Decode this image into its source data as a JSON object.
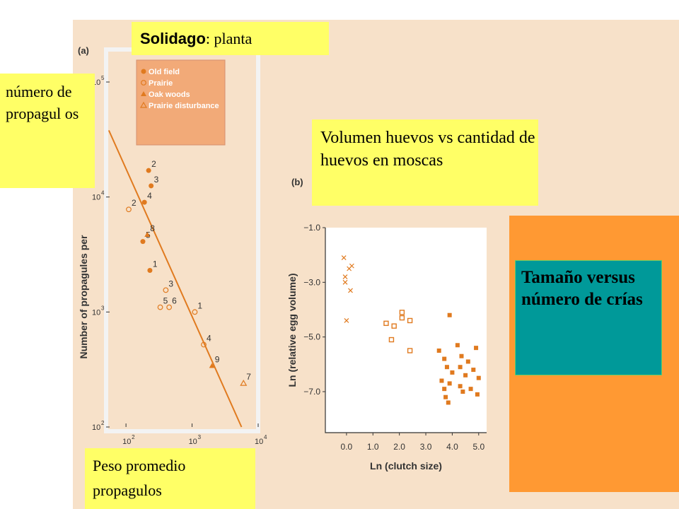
{
  "title_box": {
    "bold": "Solidago",
    "rest": ": planta"
  },
  "ylabel_box": {
    "text": "número de propagul os"
  },
  "xlabel_box": {
    "text": "Peso promedio propagulos"
  },
  "flies_box": {
    "text": "Volumen huevos vs cantidad de huevos en moscas"
  },
  "teal_box": {
    "text": "Tamaño versus número de crías"
  },
  "colors": {
    "background": "#f7e1c9",
    "accent": "#e07a1f",
    "yellow_label": "#ffff66",
    "orange_panel": "#ff9933",
    "teal": "#009999",
    "legend_bg": "#f2aa78"
  },
  "chart_data": [
    {
      "panel_label": "(a)",
      "type": "scatter",
      "ylabel": "Number of propagules per",
      "xlabel": "",
      "x_scale": "log",
      "y_scale": "log",
      "xlim": [
        50,
        10000
      ],
      "ylim": [
        100,
        100000
      ],
      "x_ticks": [
        {
          "v": 100,
          "base": "10",
          "exp": "2"
        },
        {
          "v": 1000,
          "base": "10",
          "exp": "3"
        },
        {
          "v": 10000,
          "base": "10",
          "exp": "4"
        }
      ],
      "y_ticks": [
        {
          "v": 100,
          "base": "10",
          "exp": "2"
        },
        {
          "v": 1000,
          "base": "10",
          "exp": "3"
        },
        {
          "v": 10000,
          "base": "10",
          "exp": "4"
        },
        {
          "v": 100000,
          "base": "10",
          "exp": "5"
        }
      ],
      "legend": [
        {
          "label": "Old field",
          "marker": "filled-circle"
        },
        {
          "label": "Prairie",
          "marker": "open-circle"
        },
        {
          "label": "Oak woods",
          "marker": "filled-triangle"
        },
        {
          "label": "Prairie disturbance",
          "marker": "open-triangle"
        }
      ],
      "series": [
        {
          "name": "Old field",
          "marker": "filled-circle",
          "points": [
            {
              "x": 220,
              "y": 17000,
              "label": "2"
            },
            {
              "x": 240,
              "y": 12500,
              "label": "3"
            },
            {
              "x": 190,
              "y": 9000,
              "label": "4"
            },
            {
              "x": 180,
              "y": 4100,
              "label": "5"
            },
            {
              "x": 230,
              "y": 2300,
              "label": "1"
            }
          ]
        },
        {
          "name": "Prairie",
          "marker": "open-circle",
          "points": [
            {
              "x": 110,
              "y": 7800,
              "label": "2"
            },
            {
              "x": 400,
              "y": 1550,
              "label": "3"
            },
            {
              "x": 330,
              "y": 1100,
              "label": "5"
            },
            {
              "x": 450,
              "y": 1100,
              "label": "6"
            },
            {
              "x": 1100,
              "y": 1000,
              "label": "1"
            },
            {
              "x": 1500,
              "y": 520,
              "label": "4"
            }
          ]
        },
        {
          "name": "Oak woods",
          "marker": "filled-triangle",
          "points": [
            {
              "x": 210,
              "y": 4700,
              "label": "8"
            },
            {
              "x": 2000,
              "y": 340,
              "label": "9"
            }
          ]
        },
        {
          "name": "Prairie disturbance",
          "marker": "open-triangle",
          "points": [
            {
              "x": 6000,
              "y": 240,
              "label": "7"
            }
          ]
        }
      ],
      "trend_line": [
        {
          "x": 55,
          "y": 38000
        },
        {
          "x": 5600,
          "y": 100
        }
      ]
    },
    {
      "panel_label": "(b)",
      "type": "scatter",
      "xlabel": "Ln (clutch size)",
      "ylabel": "Ln (relative egg volume)",
      "xlim": [
        -0.8,
        5.3
      ],
      "ylim": [
        -8.5,
        -1.0
      ],
      "x_ticks": [
        "0.0",
        "1.0",
        "2.0",
        "3.0",
        "4.0",
        "5.0"
      ],
      "y_ticks": [
        "−1.0",
        "−3.0",
        "−5.0",
        "−7.0"
      ],
      "series": [
        {
          "name": "",
          "marker": "x",
          "points": [
            {
              "x": -0.1,
              "y": -2.1
            },
            {
              "x": 0.1,
              "y": -2.5
            },
            {
              "x": 0.2,
              "y": -2.4
            },
            {
              "x": -0.05,
              "y": -3.0
            },
            {
              "x": 0.15,
              "y": -3.3
            },
            {
              "x": -0.05,
              "y": -2.8
            },
            {
              "x": 0.0,
              "y": -4.4
            }
          ]
        },
        {
          "name": "",
          "marker": "open-square",
          "points": [
            {
              "x": 1.5,
              "y": -4.5
            },
            {
              "x": 1.8,
              "y": -4.6
            },
            {
              "x": 2.1,
              "y": -4.1
            },
            {
              "x": 2.4,
              "y": -4.4
            },
            {
              "x": 1.7,
              "y": -5.1
            },
            {
              "x": 2.4,
              "y": -5.5
            },
            {
              "x": 2.1,
              "y": -4.3
            }
          ]
        },
        {
          "name": "",
          "marker": "filled-square",
          "points": [
            {
              "x": 3.5,
              "y": -5.5
            },
            {
              "x": 3.7,
              "y": -5.8
            },
            {
              "x": 3.8,
              "y": -6.1
            },
            {
              "x": 3.6,
              "y": -6.6
            },
            {
              "x": 3.7,
              "y": -6.9
            },
            {
              "x": 3.9,
              "y": -4.2
            },
            {
              "x": 3.85,
              "y": -7.4
            },
            {
              "x": 4.0,
              "y": -6.3
            },
            {
              "x": 4.2,
              "y": -5.3
            },
            {
              "x": 4.3,
              "y": -6.8
            },
            {
              "x": 4.35,
              "y": -5.7
            },
            {
              "x": 4.4,
              "y": -7.0
            },
            {
              "x": 4.5,
              "y": -6.4
            },
            {
              "x": 4.6,
              "y": -5.9
            },
            {
              "x": 4.7,
              "y": -6.9
            },
            {
              "x": 4.8,
              "y": -6.2
            },
            {
              "x": 4.9,
              "y": -5.4
            },
            {
              "x": 5.0,
              "y": -6.5
            },
            {
              "x": 4.95,
              "y": -7.1
            },
            {
              "x": 4.3,
              "y": -6.1
            },
            {
              "x": 3.9,
              "y": -6.7
            },
            {
              "x": 3.75,
              "y": -7.2
            }
          ]
        }
      ]
    }
  ]
}
